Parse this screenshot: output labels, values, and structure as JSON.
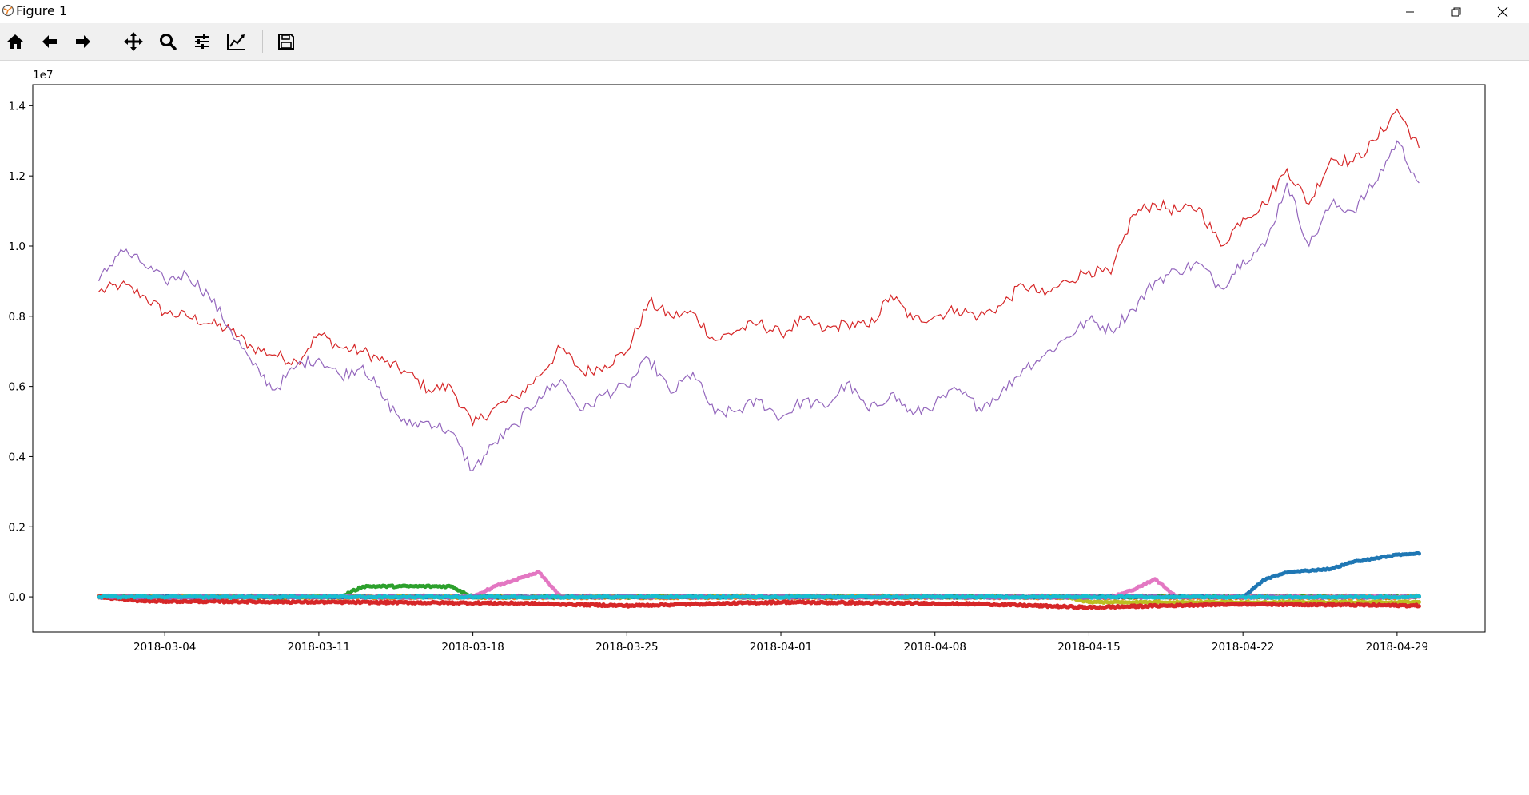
{
  "window": {
    "title": "Figure 1"
  },
  "toolbar": {
    "tools": [
      {
        "name": "home-icon"
      },
      {
        "name": "back-arrow-icon"
      },
      {
        "name": "forward-arrow-icon"
      },
      {
        "name": "pan-icon"
      },
      {
        "name": "zoom-icon"
      },
      {
        "name": "subplots-config-icon"
      },
      {
        "name": "edit-axis-icon"
      },
      {
        "name": "save-icon"
      }
    ]
  },
  "chart_data": {
    "type": "line",
    "offset_label": "1e7",
    "xlim": [
      "2018-02-26",
      "2018-05-03"
    ],
    "ylim": [
      -0.1,
      1.46
    ],
    "x_ticks": [
      "2018-03-04",
      "2018-03-11",
      "2018-03-18",
      "2018-03-25",
      "2018-04-01",
      "2018-04-08",
      "2018-04-15",
      "2018-04-22",
      "2018-04-29"
    ],
    "y_ticks": [
      "0.0",
      "0.2",
      "0.4",
      "0.6",
      "0.8",
      "1.0",
      "1.2",
      "1.4"
    ],
    "grid": false,
    "line_series": [
      {
        "color": "#d62728",
        "points": [
          [
            "2018-03-01",
            0.87
          ],
          [
            "2018-03-02",
            0.89
          ],
          [
            "2018-03-03",
            0.86
          ],
          [
            "2018-03-04",
            0.81
          ],
          [
            "2018-03-05",
            0.8
          ],
          [
            "2018-03-06",
            0.78
          ],
          [
            "2018-03-07",
            0.76
          ],
          [
            "2018-03-08",
            0.71
          ],
          [
            "2018-03-09",
            0.69
          ],
          [
            "2018-03-10",
            0.67
          ],
          [
            "2018-03-11",
            0.75
          ],
          [
            "2018-03-12",
            0.71
          ],
          [
            "2018-03-13",
            0.7
          ],
          [
            "2018-03-14",
            0.67
          ],
          [
            "2018-03-15",
            0.64
          ],
          [
            "2018-03-16",
            0.59
          ],
          [
            "2018-03-17",
            0.6
          ],
          [
            "2018-03-18",
            0.49
          ],
          [
            "2018-03-19",
            0.54
          ],
          [
            "2018-03-20",
            0.57
          ],
          [
            "2018-03-21",
            0.63
          ],
          [
            "2018-03-22",
            0.71
          ],
          [
            "2018-03-23",
            0.64
          ],
          [
            "2018-03-24",
            0.66
          ],
          [
            "2018-03-25",
            0.7
          ],
          [
            "2018-03-26",
            0.84
          ],
          [
            "2018-03-27",
            0.8
          ],
          [
            "2018-03-28",
            0.81
          ],
          [
            "2018-03-29",
            0.73
          ],
          [
            "2018-03-30",
            0.76
          ],
          [
            "2018-03-31",
            0.78
          ],
          [
            "2018-04-01",
            0.75
          ],
          [
            "2018-04-02",
            0.79
          ],
          [
            "2018-04-03",
            0.76
          ],
          [
            "2018-04-04",
            0.78
          ],
          [
            "2018-04-05",
            0.77
          ],
          [
            "2018-04-06",
            0.86
          ],
          [
            "2018-04-07",
            0.79
          ],
          [
            "2018-04-08",
            0.8
          ],
          [
            "2018-04-09",
            0.82
          ],
          [
            "2018-04-10",
            0.8
          ],
          [
            "2018-04-11",
            0.83
          ],
          [
            "2018-04-12",
            0.89
          ],
          [
            "2018-04-13",
            0.86
          ],
          [
            "2018-04-14",
            0.9
          ],
          [
            "2018-04-15",
            0.93
          ],
          [
            "2018-04-16",
            0.92
          ],
          [
            "2018-04-17",
            1.09
          ],
          [
            "2018-04-18",
            1.12
          ],
          [
            "2018-04-19",
            1.1
          ],
          [
            "2018-04-20",
            1.11
          ],
          [
            "2018-04-21",
            1.0
          ],
          [
            "2018-04-22",
            1.08
          ],
          [
            "2018-04-23",
            1.12
          ],
          [
            "2018-04-24",
            1.22
          ],
          [
            "2018-04-25",
            1.12
          ],
          [
            "2018-04-26",
            1.25
          ],
          [
            "2018-04-27",
            1.24
          ],
          [
            "2018-04-28",
            1.3
          ],
          [
            "2018-04-29",
            1.39
          ],
          [
            "2018-04-30",
            1.28
          ]
        ]
      },
      {
        "color": "#9467bd",
        "points": [
          [
            "2018-03-01",
            0.9
          ],
          [
            "2018-03-02",
            0.99
          ],
          [
            "2018-03-03",
            0.95
          ],
          [
            "2018-03-04",
            0.9
          ],
          [
            "2018-03-05",
            0.92
          ],
          [
            "2018-03-06",
            0.86
          ],
          [
            "2018-03-07",
            0.76
          ],
          [
            "2018-03-08",
            0.66
          ],
          [
            "2018-03-09",
            0.59
          ],
          [
            "2018-03-10",
            0.66
          ],
          [
            "2018-03-11",
            0.68
          ],
          [
            "2018-03-12",
            0.63
          ],
          [
            "2018-03-13",
            0.66
          ],
          [
            "2018-03-14",
            0.56
          ],
          [
            "2018-03-15",
            0.49
          ],
          [
            "2018-03-16",
            0.5
          ],
          [
            "2018-03-17",
            0.47
          ],
          [
            "2018-03-18",
            0.36
          ],
          [
            "2018-03-19",
            0.44
          ],
          [
            "2018-03-20",
            0.49
          ],
          [
            "2018-03-21",
            0.57
          ],
          [
            "2018-03-22",
            0.62
          ],
          [
            "2018-03-23",
            0.53
          ],
          [
            "2018-03-24",
            0.58
          ],
          [
            "2018-03-25",
            0.6
          ],
          [
            "2018-03-26",
            0.68
          ],
          [
            "2018-03-27",
            0.58
          ],
          [
            "2018-03-28",
            0.64
          ],
          [
            "2018-03-29",
            0.52
          ],
          [
            "2018-03-30",
            0.53
          ],
          [
            "2018-03-31",
            0.56
          ],
          [
            "2018-04-01",
            0.51
          ],
          [
            "2018-04-02",
            0.56
          ],
          [
            "2018-04-03",
            0.54
          ],
          [
            "2018-04-04",
            0.61
          ],
          [
            "2018-04-05",
            0.53
          ],
          [
            "2018-04-06",
            0.58
          ],
          [
            "2018-04-07",
            0.52
          ],
          [
            "2018-04-08",
            0.55
          ],
          [
            "2018-04-09",
            0.59
          ],
          [
            "2018-04-10",
            0.54
          ],
          [
            "2018-04-11",
            0.58
          ],
          [
            "2018-04-12",
            0.65
          ],
          [
            "2018-04-13",
            0.69
          ],
          [
            "2018-04-14",
            0.74
          ],
          [
            "2018-04-15",
            0.79
          ],
          [
            "2018-04-16",
            0.76
          ],
          [
            "2018-04-17",
            0.82
          ],
          [
            "2018-04-18",
            0.9
          ],
          [
            "2018-04-19",
            0.93
          ],
          [
            "2018-04-20",
            0.95
          ],
          [
            "2018-04-21",
            0.88
          ],
          [
            "2018-04-22",
            0.96
          ],
          [
            "2018-04-23",
            1.0
          ],
          [
            "2018-04-24",
            1.18
          ],
          [
            "2018-04-25",
            1.0
          ],
          [
            "2018-04-26",
            1.12
          ],
          [
            "2018-04-27",
            1.1
          ],
          [
            "2018-04-28",
            1.18
          ],
          [
            "2018-04-29",
            1.3
          ],
          [
            "2018-04-30",
            1.18
          ]
        ]
      }
    ],
    "scatter_series": [
      {
        "color": "#ff7f0e",
        "points": [
          [
            "2018-03-01",
            0.0
          ],
          [
            "2018-04-30",
            0.0
          ]
        ],
        "amplitude": 0.008,
        "density": 4
      },
      {
        "color": "#2ca02c",
        "points": [
          [
            "2018-03-01",
            0.0
          ],
          [
            "2018-03-12",
            0.0
          ],
          [
            "2018-03-13",
            0.03
          ],
          [
            "2018-03-14",
            0.03
          ],
          [
            "2018-03-15",
            0.03
          ],
          [
            "2018-03-16",
            0.03
          ],
          [
            "2018-03-17",
            0.03
          ],
          [
            "2018-03-18",
            0.0
          ],
          [
            "2018-04-30",
            0.0
          ]
        ],
        "amplitude": 0.005,
        "density": 3
      },
      {
        "color": "#e377c2",
        "points": [
          [
            "2018-03-01",
            0.0
          ],
          [
            "2018-03-18",
            0.0
          ],
          [
            "2018-03-19",
            0.03
          ],
          [
            "2018-03-20",
            0.05
          ],
          [
            "2018-03-21",
            0.07
          ],
          [
            "2018-03-22",
            0.0
          ],
          [
            "2018-04-16",
            0.0
          ],
          [
            "2018-04-17",
            0.02
          ],
          [
            "2018-04-18",
            0.05
          ],
          [
            "2018-04-19",
            0.0
          ],
          [
            "2018-04-30",
            0.0
          ]
        ],
        "amplitude": 0.004,
        "density": 3
      },
      {
        "color": "#bcbd22",
        "points": [
          [
            "2018-03-01",
            0.0
          ],
          [
            "2018-04-14",
            0.0
          ],
          [
            "2018-04-15",
            -0.015
          ],
          [
            "2018-04-30",
            -0.015
          ]
        ],
        "amplitude": 0.004,
        "density": 3
      },
      {
        "color": "#1f77b4",
        "points": [
          [
            "2018-03-01",
            0.0
          ],
          [
            "2018-04-22",
            0.0
          ],
          [
            "2018-04-23",
            0.05
          ],
          [
            "2018-04-24",
            0.07
          ],
          [
            "2018-04-25",
            0.075
          ],
          [
            "2018-04-26",
            0.08
          ],
          [
            "2018-04-27",
            0.1
          ],
          [
            "2018-04-28",
            0.11
          ],
          [
            "2018-04-29",
            0.12
          ],
          [
            "2018-04-30",
            0.125
          ]
        ],
        "amplitude": 0.003,
        "density": 3
      },
      {
        "color": "#d62728",
        "points": [
          [
            "2018-03-01",
            0.0
          ],
          [
            "2018-03-03",
            -0.012
          ],
          [
            "2018-03-20",
            -0.018
          ],
          [
            "2018-03-25",
            -0.025
          ],
          [
            "2018-04-01",
            -0.015
          ],
          [
            "2018-04-10",
            -0.02
          ],
          [
            "2018-04-15",
            -0.03
          ],
          [
            "2018-04-22",
            -0.02
          ],
          [
            "2018-04-30",
            -0.025
          ]
        ],
        "amplitude": 0.005,
        "density": 4
      },
      {
        "color": "#9467bd",
        "points": [
          [
            "2018-03-01",
            0.0
          ],
          [
            "2018-04-30",
            0.0
          ]
        ],
        "amplitude": 0.006,
        "density": 2
      },
      {
        "color": "#17becf",
        "points": [
          [
            "2018-03-01",
            0.0
          ],
          [
            "2018-04-30",
            0.0
          ]
        ],
        "amplitude": 0.005,
        "density": 2
      }
    ]
  }
}
